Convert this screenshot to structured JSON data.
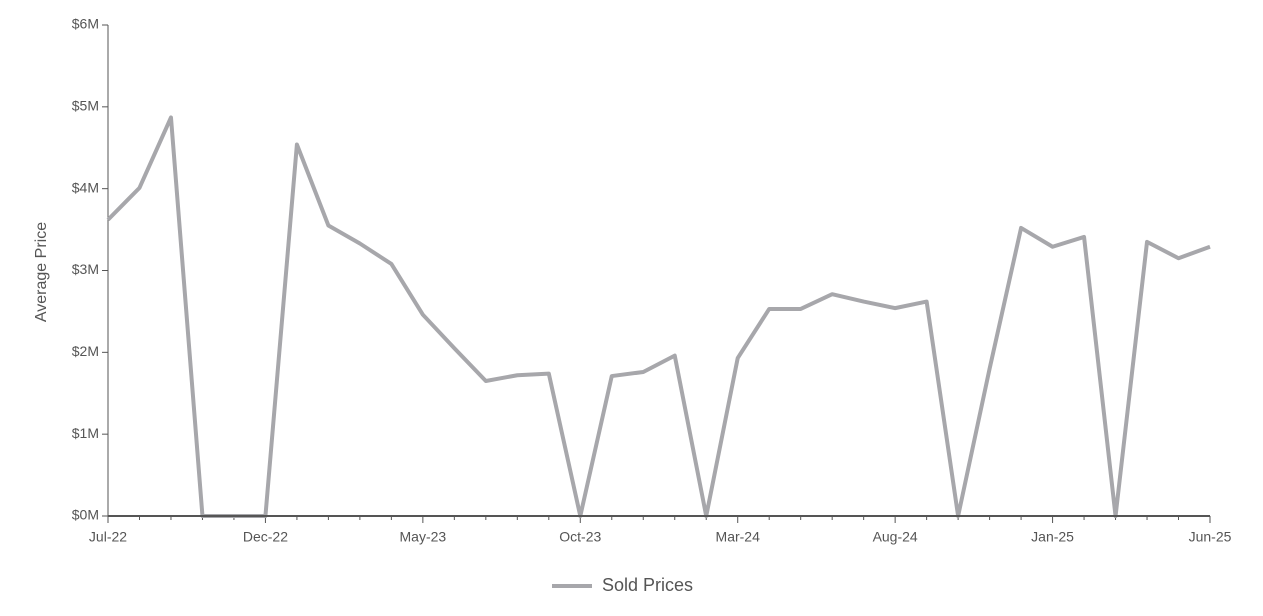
{
  "chart_data": {
    "type": "line",
    "y_label": "Average Price",
    "categories": [
      "Jul-22",
      null,
      null,
      null,
      null,
      "Dec-22",
      null,
      null,
      null,
      null,
      "May-23",
      null,
      null,
      null,
      null,
      "Oct-23",
      null,
      null,
      null,
      null,
      "Mar-24",
      null,
      null,
      null,
      null,
      "Aug-24",
      null,
      null,
      null,
      null,
      "Jan-25",
      null,
      null,
      null,
      null,
      "Jun-25"
    ],
    "series": [
      {
        "name": "Sold Prices",
        "color": "#a7a7ab",
        "values": [
          3.62,
          4.01,
          4.87,
          0,
          0,
          0,
          4.54,
          3.55,
          3.33,
          3.08,
          2.46,
          2.05,
          1.65,
          1.72,
          1.74,
          0,
          1.71,
          1.76,
          1.96,
          0,
          1.93,
          2.53,
          2.53,
          2.71,
          2.62,
          2.54,
          2.62,
          0,
          1.8,
          3.52,
          3.29,
          3.41,
          0,
          3.35,
          3.15,
          3.29
        ]
      }
    ],
    "ylim": [
      0,
      6
    ],
    "yticks": [
      {
        "value": 0,
        "label": "$0M"
      },
      {
        "value": 1,
        "label": "$1M"
      },
      {
        "value": 2,
        "label": "$2M"
      },
      {
        "value": 3,
        "label": "$3M"
      },
      {
        "value": 4,
        "label": "$4M"
      },
      {
        "value": 5,
        "label": "$5M"
      },
      {
        "value": 6,
        "label": "$6M"
      }
    ],
    "legend": "bottom"
  }
}
